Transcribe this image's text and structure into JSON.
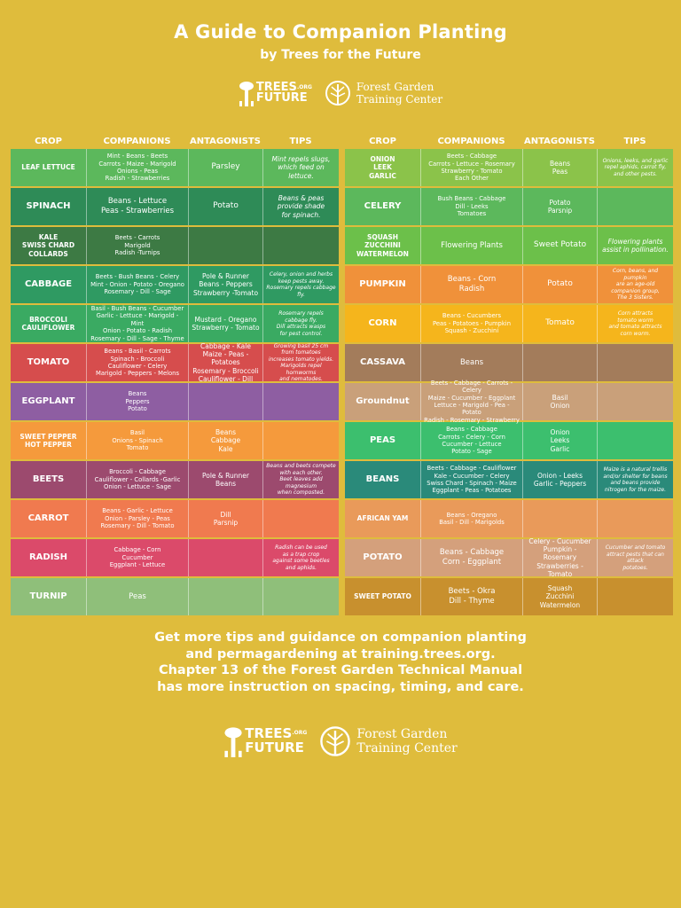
{
  "header": {
    "title": "A Guide to Companion Planting",
    "subtitle": "by Trees for the Future",
    "trees_logo": {
      "line1": "TREES",
      "org": ".ORG",
      "line2": "FUTURE"
    },
    "fg_logo": {
      "line1": "Forest Garden",
      "line2": "Training Center"
    }
  },
  "columns": {
    "crop": "CROP",
    "companions": "COMPANIONS",
    "antagonists": "ANTAGONISTS",
    "tips": "TIPS"
  },
  "left_rows": [
    {
      "crop": "LEAF LETTUCE",
      "companions": "Mint - Beans - Beets\nCarrots - Maize - Marigold\nOnions - Peas\nRadish - Strawberries",
      "antagonists": "Parsley",
      "tips": "Mint repels slugs,\nwhich feed on lettuce.",
      "color": "#5cb85c"
    },
    {
      "crop": "SPINACH",
      "companions": "Beans - Lettuce\nPeas - Strawberries",
      "antagonists": "Potato",
      "tips": "Beans & peas\nprovide shade\nfor spinach.",
      "color": "#2e8b57"
    },
    {
      "crop": "KALE\nSWISS CHARD\nCOLLARDS",
      "companions": "Beets - Carrots\nMarigold\nRadish -Turnips",
      "antagonists": "",
      "tips": "",
      "color": "#3d7a44"
    },
    {
      "crop": "CABBAGE",
      "companions": "Beets - Bush Beans - Celery\nMint - Onion - Potato - Oregano\nRosemary - Dill - Sage",
      "antagonists": "Pole & Runner\nBeans - Peppers\nStrawberry -Tomato",
      "tips": "Celery, onion and herbs\nkeep pests away.\nRosemary repels cabbage fly.",
      "color": "#2f9a62"
    },
    {
      "crop": "BROCCOLI\nCAULIFLOWER",
      "companions": "Basil - Bush Beans - Cucumber\nGarlic - Lettuce - Marigold - Mint\nOnion - Potato - Radish\nRosemary - Dill - Sage - Thyme",
      "antagonists": "Mustard - Oregano\nStrawberry - Tomato",
      "tips": "Rosemary repels\ncabbage fly.\nDill attracts wasps\nfor pest control.",
      "color": "#3aaa62"
    },
    {
      "crop": "TOMATO",
      "companions": "Beans - Basil - Carrots\nSpinach - Broccoli\nCauliflower - Celery\nMarigold - Peppers - Melons",
      "antagonists": "Cabbage - Kale\nMaize - Peas - Potatoes\nRosemary - Broccoli\nCauliflower - Dill",
      "tips": "Growing basil 25 cm\nfrom tomatoes\nincreases tomato yields.\nMarigolds repel hornworms\nand nematodes.",
      "color": "#d64d4d"
    },
    {
      "crop": "EGGPLANT",
      "companions": "Beans\nPeppers\nPotato",
      "antagonists": "",
      "tips": "",
      "color": "#8e5ea2"
    },
    {
      "crop": "SWEET PEPPER\nHOT PEPPER",
      "companions": "Basil\nOnions - Spinach\nTomato",
      "antagonists": "Beans\nCabbage\nKale",
      "tips": "",
      "color": "#f59a3c"
    },
    {
      "crop": "BEETS",
      "companions": "Broccoli - Cabbage\nCauliflower - Collards -Garlic\nOnion - Lettuce - Sage",
      "antagonists": "Pole & Runner\nBeans",
      "tips": "Beans and beets compete\nwith each other.\nBeet leaves add magnesium\nwhen composted.",
      "color": "#9c4a6e"
    },
    {
      "crop": "CARROT",
      "companions": "Beans - Garlic - Lettuce\nOnion - Parsley - Peas\nRosemary - Dill - Tomato",
      "antagonists": "Dill\nParsnip",
      "tips": "",
      "color": "#f07a4f"
    },
    {
      "crop": "RADISH",
      "companions": "Cabbage - Corn\nCucumber\nEggplant - Lettuce",
      "antagonists": "",
      "tips": "Radish can be used\nas a trap crop\nagainst some beetles\nand aphids.",
      "color": "#db4a6a"
    },
    {
      "crop": "TURNIP",
      "companions": "Peas",
      "antagonists": "",
      "tips": "",
      "color": "#8fbf7a"
    }
  ],
  "right_rows": [
    {
      "crop": "ONION\nLEEK\nGARLIC",
      "companions": "Beets - Cabbage\nCarrots - Lettuce - Rosemary\nStrawberry - Tomato\nEach Other",
      "antagonists": "Beans\nPeas",
      "tips": "Onions, leeks, and garlic\nrepel aphids, carrot fly,\nand other pests.",
      "color": "#8bc34a"
    },
    {
      "crop": "CELERY",
      "companions": "Bush Beans - Cabbage\nDill - Leeks\nTomatoes",
      "antagonists": "Potato\nParsnip",
      "tips": "",
      "color": "#5cb85c"
    },
    {
      "crop": "SQUASH\nZUCCHINI\nWATERMELON",
      "companions": "Flowering Plants",
      "antagonists": "Sweet Potato",
      "tips": "Flowering plants\nassist in pollination.",
      "color": "#6cc04a"
    },
    {
      "crop": "PUMPKIN",
      "companions": "Beans - Corn\nRadish",
      "antagonists": "Potato",
      "tips": "Corn, beans, and pumpkin\nare an age-old\ncompanion group,\nThe 3 Sisters.",
      "color": "#f0913a"
    },
    {
      "crop": "CORN",
      "companions": "Beans - Cucumbers\nPeas - Potatoes - Pumpkin\nSquash - Zucchini",
      "antagonists": "Tomato",
      "tips": "Corn attracts\ntomato worm\nand tomato attracts\ncorn worm.",
      "color": "#f5b51c"
    },
    {
      "crop": "CASSAVA",
      "companions": "Beans",
      "antagonists": "",
      "tips": "",
      "color": "#a37c5b"
    },
    {
      "crop": "Groundnut",
      "companions": "Beets - Cabbage - Carrots - Celery\nMaize - Cucumber - Eggplant\nLettuce - Marigold - Pea - Potato\nRadish - Rosemary - Strawberry",
      "antagonists": "Basil\nOnion",
      "tips": "",
      "color": "#c9a07a"
    },
    {
      "crop": "PEAS",
      "companions": "Beans - Cabbage\nCarrots - Celery - Corn\nCucumber - Lettuce\nPotato - Sage",
      "antagonists": "Onion\nLeeks\nGarlic",
      "tips": "",
      "color": "#3cbf6e"
    },
    {
      "crop": "BEANS",
      "companions": "Beets - Cabbage - Cauliflower\nKale - Cucumber - Celery\nSwiss Chard - Spinach - Maize\nEggplant - Peas - Potatoes",
      "antagonists": "Onion - Leeks\nGarlic - Peppers",
      "tips": "Maize is a natural trellis\nand/or shelter for beans\nand beans provide\nnitrogen for the maize.",
      "color": "#2a8a7a"
    },
    {
      "crop": "AFRICAN YAM",
      "companions": "Beans - Oregano\nBasil - Dill - Marigolds",
      "antagonists": "",
      "tips": "",
      "color": "#e99a5a"
    },
    {
      "crop": "POTATO",
      "companions": "Beans - Cabbage\nCorn - Eggplant",
      "antagonists": "Celery - Cucumber\nPumpkin - Rosemary\nStrawberries - Tomato",
      "tips": "Cucumber and tomato\nattract pests that can attack\npotatoes.",
      "color": "#d4a07c"
    },
    {
      "crop": "SWEET POTATO",
      "companions": "Beets - Okra\nDill - Thyme",
      "antagonists": "Squash\nZucchini\nWatermelon",
      "tips": "",
      "color": "#c8902e"
    }
  ],
  "footer": {
    "line1": "Get more tips and guidance on companion planting",
    "line2": "and permagardening at training.trees.org.",
    "line3": "Chapter 13 of the Forest Garden Technical Manual",
    "line4": "has more instruction on spacing, timing, and care."
  }
}
